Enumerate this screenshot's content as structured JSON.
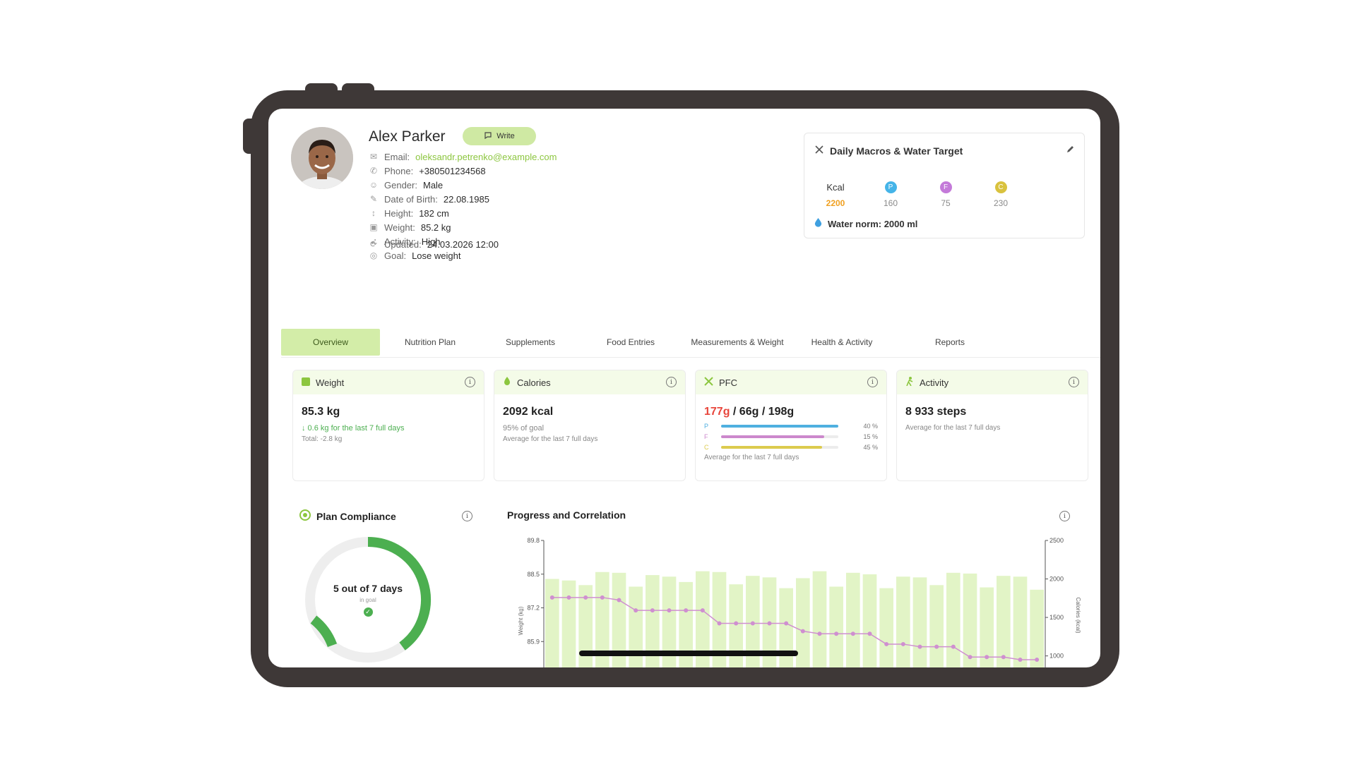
{
  "profile": {
    "name": "Alex Parker",
    "write_label": "Write",
    "fields": [
      {
        "label": "Email:",
        "value": "oleksandr.petrenko@example.com",
        "icon": "mail-icon"
      },
      {
        "label": "Phone:",
        "value": "+380501234568",
        "icon": "phone-icon"
      },
      {
        "label": "Gender:",
        "value": "Male",
        "icon": "person-icon"
      },
      {
        "label": "Date of Birth:",
        "value": "22.08.1985",
        "icon": "cake-icon"
      },
      {
        "label": "Height:",
        "value": "182 cm",
        "icon": "height-icon"
      },
      {
        "label": "Weight:",
        "value": "85.2 kg",
        "icon": "scale-icon"
      },
      {
        "label": "Activity:",
        "value": "High",
        "icon": "run-icon"
      },
      {
        "label": "Goal:",
        "value": "Lose weight",
        "icon": "target-icon"
      }
    ],
    "updated_label": "Updated:",
    "updated_value": "24.03.2026 12:00"
  },
  "macros": {
    "title": "Daily Macros & Water Target",
    "kcal_label": "Kcal",
    "kcal_value": "2200",
    "p_letter": "P",
    "p_value": "160",
    "f_letter": "F",
    "f_value": "75",
    "c_letter": "C",
    "c_value": "230",
    "water": "Water norm: 2000 ml"
  },
  "tabs": [
    "Overview",
    "Nutrition Plan",
    "Supplements",
    "Food Entries",
    "Measurements & Weight",
    "Health & Activity",
    "Reports"
  ],
  "cards": {
    "weight": {
      "title": "Weight",
      "value": "85.3 kg",
      "change": "↓ 0.6 kg for the last 7 full days",
      "total": "Total: -2.8 kg"
    },
    "calories": {
      "title": "Calories",
      "value": "2092 kcal",
      "pct": "95% of goal",
      "note": "Average for the last 7 full days"
    },
    "pfc": {
      "title": "PFC",
      "p_val": "177g",
      "rest": " / 66g / 198g",
      "rows": [
        {
          "k": "P",
          "pct": "40 %",
          "fill": 1.0,
          "color": "#4fb0e0"
        },
        {
          "k": "F",
          "pct": "15 %",
          "fill": 0.88,
          "color": "#cc88cc"
        },
        {
          "k": "C",
          "pct": "45 %",
          "fill": 0.86,
          "color": "#dccb4e"
        }
      ],
      "note": "Average for the last 7 full days"
    },
    "activity": {
      "title": "Activity",
      "value": "8 933 steps",
      "note": "Average for the last 7 full days"
    }
  },
  "compliance": {
    "title": "Plan Compliance",
    "main": "5 out of 7 days",
    "sub": "in goal",
    "done": 5,
    "total": 7
  },
  "chart_data": {
    "type": "bar",
    "title": "Progress and Correlation",
    "ylabel": "Weight (kg)",
    "y2label": "Calories (kcal)",
    "y_ticks": [
      "89.8",
      "88.5",
      "87.2",
      "85.9"
    ],
    "y2_ticks": [
      "2500",
      "2000",
      "1500",
      "1000"
    ],
    "ylim": [
      84.9,
      89.8
    ],
    "y2lim": [
      850,
      2500
    ],
    "series": [
      {
        "name": "Calories",
        "axis": "right",
        "values": [
          2000,
          1980,
          1920,
          2090,
          2080,
          1900,
          2050,
          2030,
          1960,
          2100,
          2090,
          1930,
          2040,
          2020,
          1880,
          2010,
          2100,
          1900,
          2080,
          2060,
          1880,
          2030,
          2020,
          1920,
          2080,
          2070,
          1890,
          2040,
          2030,
          1860
        ],
        "color": "#e2f4c6"
      },
      {
        "name": "Weight",
        "axis": "left",
        "values": [
          87.6,
          87.6,
          87.6,
          87.6,
          87.5,
          87.1,
          87.1,
          87.1,
          87.1,
          87.1,
          86.6,
          86.6,
          86.6,
          86.6,
          86.6,
          86.3,
          86.2,
          86.2,
          86.2,
          86.2,
          85.8,
          85.8,
          85.7,
          85.7,
          85.7,
          85.3,
          85.3,
          85.3,
          85.2,
          85.2
        ],
        "color": "#cf8fd0"
      }
    ]
  }
}
